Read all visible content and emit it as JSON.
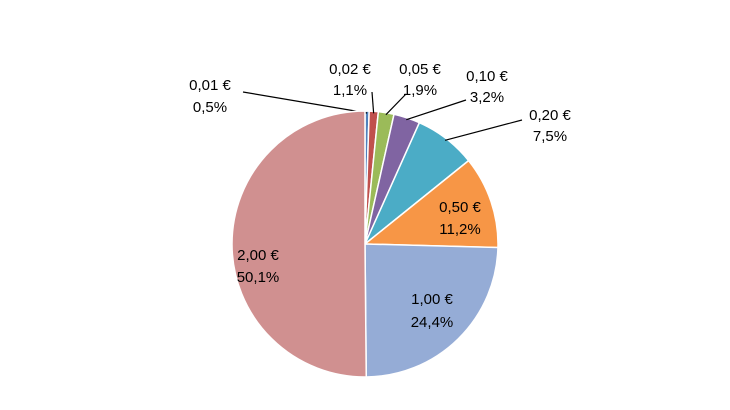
{
  "chart_data": {
    "type": "pie",
    "categories": [
      "0,01 €",
      "0,02 €",
      "0,05 €",
      "0,10 €",
      "0,20 €",
      "0,50 €",
      "1,00 €",
      "2,00 €"
    ],
    "values": [
      0.5,
      1.1,
      1.9,
      3.2,
      7.5,
      11.2,
      24.4,
      50.1
    ],
    "value_labels": [
      "0,5%",
      "1,1%",
      "1,9%",
      "3,2%",
      "7,5%",
      "11,2%",
      "24,4%",
      "50,1%"
    ],
    "colors": [
      "#4f81bd",
      "#c0504d",
      "#9bbb59",
      "#8064a2",
      "#4bacc6",
      "#f79646",
      "#95acd6",
      "#d09090"
    ]
  }
}
